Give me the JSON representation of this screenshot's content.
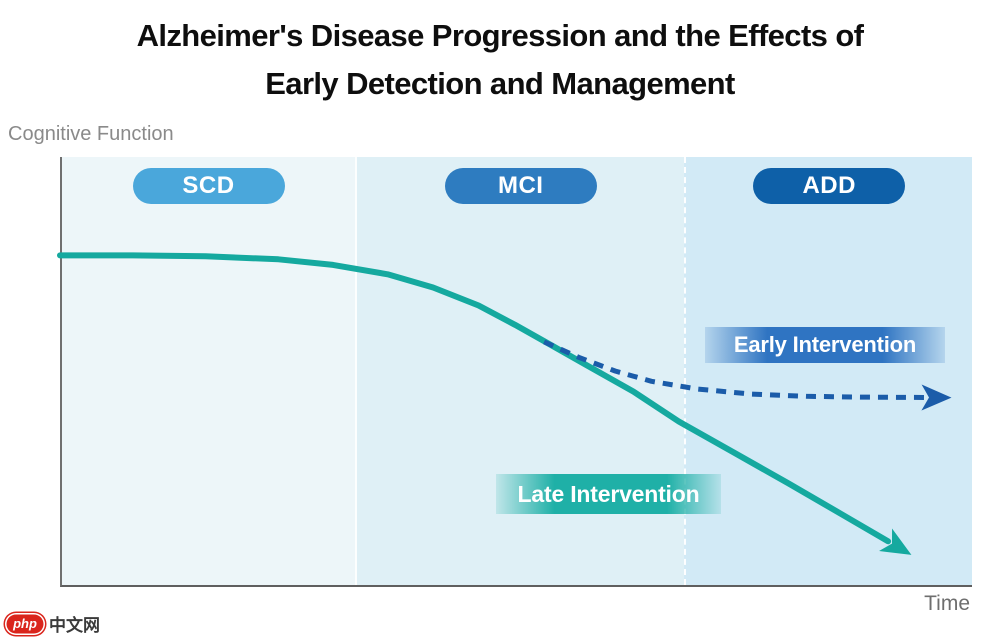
{
  "title": {
    "line1": "Alzheimer's Disease Progression and the Effects of",
    "line2": "Early Detection and Management"
  },
  "y_axis_label": "Cognitive Function",
  "x_axis_label": "Time",
  "watermark": {
    "badge": "php",
    "text": "中文网",
    "badge_color": "#da251c"
  },
  "colors": {
    "late_intervention_line": "#15a99f",
    "early_intervention_line": "#1b5ca9",
    "axis": "#707070",
    "early_label_bg": "#2f74c2",
    "late_label_bg": "#1fb0a7"
  },
  "chart_data": {
    "type": "line",
    "title": "Alzheimer's Disease Progression and the Effects of Early Detection and Management",
    "xlabel": "Time",
    "ylabel": "Cognitive Function",
    "xlim": [
      0,
      100
    ],
    "ylim": [
      0,
      100
    ],
    "grid": false,
    "x_ticks": [],
    "y_ticks": [],
    "legend_position": "inline-annotations",
    "regions": [
      {
        "label": "SCD",
        "x_start": 0,
        "x_end": 32.2,
        "band_color": "#edf6f9",
        "badge_color": "#4aa7db"
      },
      {
        "label": "MCI",
        "x_start": 32.2,
        "x_end": 68.4,
        "band_color": "#dff0f6",
        "badge_color": "#2e7cc0"
      },
      {
        "label": "ADD",
        "x_start": 68.4,
        "x_end": 100,
        "band_color": "#d2eaf6",
        "badge_color": "#0e60a8"
      }
    ],
    "series": [
      {
        "name": "Late Intervention",
        "color": "#15a99f",
        "line_style": "solid",
        "stroke_width": 6,
        "arrow_end": true,
        "points": [
          [
            0,
            77
          ],
          [
            8,
            77
          ],
          [
            16,
            76.8
          ],
          [
            24,
            76.1
          ],
          [
            30,
            74.8
          ],
          [
            36,
            72.6
          ],
          [
            41,
            69.5
          ],
          [
            46,
            65.3
          ],
          [
            50,
            60.8
          ],
          [
            54,
            56
          ],
          [
            58,
            51.2
          ],
          [
            63,
            45.2
          ],
          [
            68,
            38.2
          ],
          [
            74,
            31
          ],
          [
            80,
            23.8
          ],
          [
            86,
            16.4
          ],
          [
            91,
            10.2
          ]
        ]
      },
      {
        "name": "Early Intervention",
        "color": "#1b5ca9",
        "line_style": "dashed",
        "stroke_width": 5,
        "arrow_end": true,
        "points": [
          [
            53.2,
            56.8
          ],
          [
            57,
            53.2
          ],
          [
            61,
            50
          ],
          [
            65,
            47.6
          ],
          [
            70,
            45.8
          ],
          [
            76,
            44.6
          ],
          [
            82,
            44.1
          ],
          [
            88,
            43.9
          ],
          [
            95,
            43.8
          ]
        ]
      }
    ],
    "annotations": [
      {
        "label": "Early Intervention",
        "x": 82,
        "y": 56
      },
      {
        "label": "Late Intervention",
        "x": 59,
        "y": 21
      }
    ]
  }
}
